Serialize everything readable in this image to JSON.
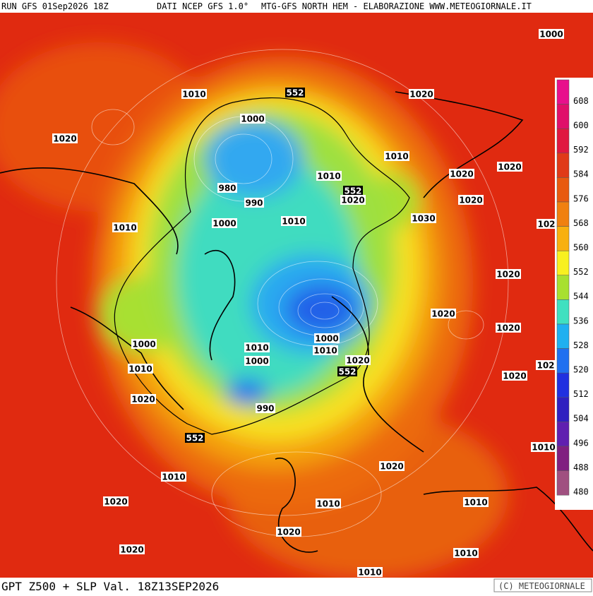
{
  "header": {
    "run": "RUN GFS 01Sep2026 18Z",
    "source": "DATI NCEP GFS 1.0°",
    "product": "MTG-GFS NORTH HEM - ELABORAZIONE WWW.METEOGIORNALE.IT"
  },
  "footer": {
    "title": "GPT Z500 + SLP Val. 18Z13SEP2026",
    "credit": "(C) METEOGIORNALE"
  },
  "colorbar": {
    "levels": [
      608,
      600,
      592,
      584,
      576,
      568,
      560,
      552,
      544,
      536,
      528,
      520,
      512,
      504,
      496,
      488,
      480
    ],
    "colors": [
      "#e8108c",
      "#e0106a",
      "#e01840",
      "#e03a18",
      "#e85a10",
      "#f08010",
      "#f8b010",
      "#f8f020",
      "#a8e030",
      "#40e0c0",
      "#20b0f0",
      "#2070f0",
      "#2030e0",
      "#3020c0",
      "#6020b0",
      "#802080",
      "#a05080"
    ]
  },
  "contour_labels": [
    1000,
    552,
    1010,
    1020,
    1000,
    1020,
    1010,
    1010,
    1020,
    1020,
    552,
    1020,
    1020,
    980,
    990,
    1030,
    1010,
    1000,
    1010,
    102,
    1020,
    1020,
    1020,
    1000,
    1000,
    1010,
    1010,
    1010,
    1000,
    1020,
    552,
    1020,
    102,
    1020,
    990,
    552,
    1010,
    1010,
    1020,
    1020,
    1010,
    1010,
    1020,
    1020,
    1010,
    1010
  ]
}
